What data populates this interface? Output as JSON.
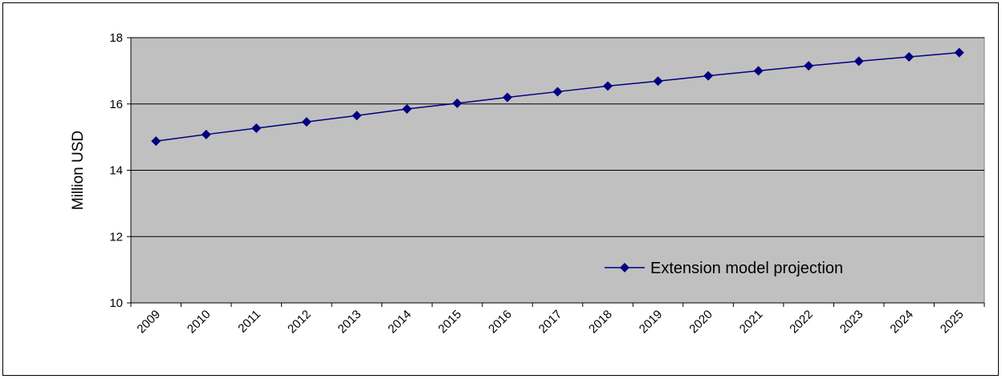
{
  "chart_data": {
    "type": "line",
    "title": "",
    "xlabel": "",
    "ylabel": "Million USD",
    "ylim": [
      10,
      18
    ],
    "yticks": [
      10,
      12,
      14,
      16,
      18
    ],
    "grid": true,
    "legend_position": "bottom-right",
    "categories": [
      "2009",
      "2010",
      "2011",
      "2012",
      "2013",
      "2014",
      "2015",
      "2016",
      "2017",
      "2018",
      "2019",
      "2020",
      "2021",
      "2022",
      "2023",
      "2024",
      "2025"
    ],
    "series": [
      {
        "name": "Extension model projection",
        "color": "#000080",
        "marker": "diamond",
        "values": [
          14.88,
          15.08,
          15.27,
          15.46,
          15.65,
          15.85,
          16.02,
          16.2,
          16.37,
          16.54,
          16.69,
          16.85,
          17.0,
          17.15,
          17.29,
          17.42,
          17.55
        ]
      }
    ],
    "plot_background": "#c0c0c0"
  }
}
